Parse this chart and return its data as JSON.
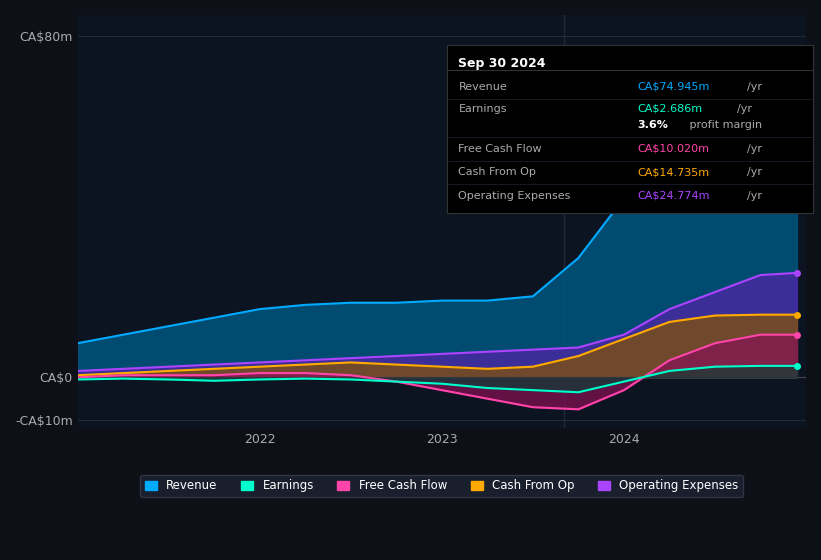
{
  "background_color": "#0d1117",
  "plot_bg_color": "#0d1421",
  "grid_color": "#2a3040",
  "x_min": 2021.0,
  "x_max": 2025.0,
  "y_min": -12,
  "y_max": 85,
  "y_ticks": [
    80,
    0,
    -10
  ],
  "y_tick_labels": [
    "CA$80m",
    "CA$0",
    "-CA$10m"
  ],
  "x_ticks": [
    2022,
    2023,
    2024
  ],
  "series": {
    "Revenue": {
      "color": "#00aaff",
      "fill_color": "#005580",
      "fill_alpha": 0.85,
      "x": [
        2021.0,
        2021.25,
        2021.5,
        2021.75,
        2022.0,
        2022.25,
        2022.5,
        2022.75,
        2023.0,
        2023.25,
        2023.5,
        2023.75,
        2024.0,
        2024.25,
        2024.5,
        2024.75,
        2024.95
      ],
      "y": [
        8,
        10,
        12,
        14,
        16,
        17,
        17.5,
        17.5,
        18,
        18,
        19,
        28,
        42,
        58,
        68,
        74,
        75
      ]
    },
    "OperatingExpenses": {
      "color": "#aa44ff",
      "fill_color": "#5522aa",
      "fill_alpha": 0.7,
      "x": [
        2021.0,
        2021.25,
        2021.5,
        2021.75,
        2022.0,
        2022.25,
        2022.5,
        2022.75,
        2023.0,
        2023.25,
        2023.5,
        2023.75,
        2024.0,
        2024.25,
        2024.5,
        2024.75,
        2024.95
      ],
      "y": [
        1.5,
        2.0,
        2.5,
        3.0,
        3.5,
        4.0,
        4.5,
        5.0,
        5.5,
        6.0,
        6.5,
        7.0,
        10,
        16,
        20,
        24,
        24.5
      ]
    },
    "CashFromOp": {
      "color": "#ffaa00",
      "fill_color": "#885500",
      "fill_alpha": 0.7,
      "x": [
        2021.0,
        2021.25,
        2021.5,
        2021.75,
        2022.0,
        2022.25,
        2022.5,
        2022.75,
        2023.0,
        2023.25,
        2023.5,
        2023.75,
        2024.0,
        2024.25,
        2024.5,
        2024.75,
        2024.95
      ],
      "y": [
        0.5,
        1.0,
        1.5,
        2.0,
        2.5,
        3.0,
        3.5,
        3.0,
        2.5,
        2.0,
        2.5,
        5.0,
        9,
        13,
        14.5,
        14.7,
        14.7
      ]
    },
    "FreeCashFlow": {
      "color": "#ff44aa",
      "fill_color": "#881155",
      "fill_alpha": 0.7,
      "x": [
        2021.0,
        2021.25,
        2021.5,
        2021.75,
        2022.0,
        2022.25,
        2022.5,
        2022.75,
        2023.0,
        2023.25,
        2023.5,
        2023.75,
        2024.0,
        2024.25,
        2024.5,
        2024.75,
        2024.95
      ],
      "y": [
        0.0,
        0.5,
        0.5,
        0.5,
        1.0,
        1.0,
        0.5,
        -1.0,
        -3.0,
        -5.0,
        -7.0,
        -7.5,
        -3.0,
        4.0,
        8.0,
        10.0,
        10.0
      ]
    },
    "Earnings": {
      "color": "#00ffcc",
      "fill_color": "#004433",
      "fill_alpha": 0.6,
      "x": [
        2021.0,
        2021.25,
        2021.5,
        2021.75,
        2022.0,
        2022.25,
        2022.5,
        2022.75,
        2023.0,
        2023.25,
        2023.5,
        2023.75,
        2024.0,
        2024.25,
        2024.5,
        2024.75,
        2024.95
      ],
      "y": [
        -0.5,
        -0.3,
        -0.5,
        -0.8,
        -0.5,
        -0.3,
        -0.5,
        -1.0,
        -1.5,
        -2.5,
        -3.0,
        -3.5,
        -1.0,
        1.5,
        2.5,
        2.686,
        2.686
      ]
    }
  },
  "info_box": {
    "date": "Sep 30 2024",
    "rows": [
      {
        "label": "Revenue",
        "value": "CA$74.945m",
        "unit": "/yr",
        "color": "#00aaff",
        "bold_value": false
      },
      {
        "label": "Earnings",
        "value": "CA$2.686m",
        "unit": "/yr",
        "color": "#00ffcc",
        "bold_value": false
      },
      {
        "label": "",
        "value": "3.6%",
        "unit": " profit margin",
        "color": "#ffffff",
        "bold_value": true
      },
      {
        "label": "Free Cash Flow",
        "value": "CA$10.020m",
        "unit": "/yr",
        "color": "#ff44aa",
        "bold_value": false
      },
      {
        "label": "Cash From Op",
        "value": "CA$14.735m",
        "unit": "/yr",
        "color": "#ffaa00",
        "bold_value": false
      },
      {
        "label": "Operating Expenses",
        "value": "CA$24.774m",
        "unit": "/yr",
        "color": "#aa44ff",
        "bold_value": false
      }
    ],
    "bg_color": "#000000",
    "text_color": "#aaaaaa",
    "border_color": "#333333"
  },
  "legend": [
    {
      "label": "Revenue",
      "color": "#00aaff"
    },
    {
      "label": "Earnings",
      "color": "#00ffcc"
    },
    {
      "label": "Free Cash Flow",
      "color": "#ff44aa"
    },
    {
      "label": "Cash From Op",
      "color": "#ffaa00"
    },
    {
      "label": "Operating Expenses",
      "color": "#aa44ff"
    }
  ]
}
